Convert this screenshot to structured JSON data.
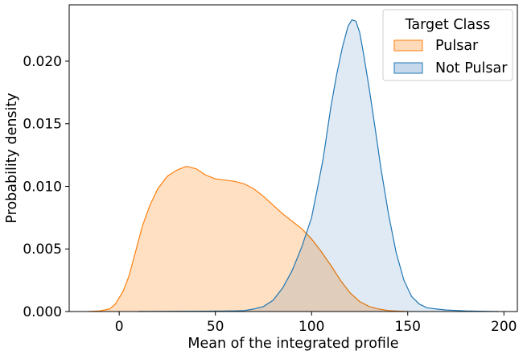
{
  "chart_data": {
    "type": "area",
    "title": "",
    "xlabel": "Mean of the integrated profile",
    "ylabel": "Probability density",
    "xlim": [
      -26,
      207
    ],
    "ylim": [
      0,
      0.0245
    ],
    "xticks": [
      0,
      50,
      100,
      150,
      200
    ],
    "xtick_labels": [
      "0",
      "50",
      "100",
      "150",
      "200"
    ],
    "yticks": [
      0,
      0.005,
      0.01,
      0.015,
      0.02
    ],
    "ytick_labels": [
      "0.000",
      "0.005",
      "0.010",
      "0.015",
      "0.020"
    ],
    "grid": false,
    "legend": {
      "title": "Target Class",
      "placement": "top-right"
    },
    "series": [
      {
        "name": "Pulsar",
        "color": "#ff7f0e",
        "fill": "#ffdab9",
        "x": [
          -16,
          -10,
          -5,
          -2,
          2,
          5,
          8,
          12,
          16,
          20,
          25,
          30,
          35,
          40,
          45,
          50,
          55,
          60,
          65,
          70,
          75,
          80,
          85,
          90,
          95,
          100,
          105,
          110,
          115,
          120,
          125,
          130,
          135,
          140,
          145,
          150
        ],
        "y": [
          0,
          5e-05,
          0.0002,
          0.0006,
          0.0016,
          0.0028,
          0.0045,
          0.0068,
          0.0085,
          0.0098,
          0.0108,
          0.0113,
          0.0116,
          0.0114,
          0.0109,
          0.0106,
          0.0105,
          0.0104,
          0.0102,
          0.0098,
          0.0092,
          0.0085,
          0.0078,
          0.0072,
          0.0066,
          0.0058,
          0.0048,
          0.0037,
          0.0025,
          0.0015,
          0.0008,
          0.0004,
          0.0002,
          8e-05,
          3e-05,
          0
        ]
      },
      {
        "name": "Not Pulsar",
        "color": "#1f77b4",
        "fill": "#c6d9ec",
        "x": [
          10,
          30,
          50,
          60,
          65,
          70,
          75,
          80,
          85,
          90,
          95,
          100,
          103,
          106,
          110,
          113,
          116,
          119,
          121,
          123,
          125,
          127,
          130,
          133,
          136,
          140,
          144,
          148,
          152,
          156,
          160,
          165,
          170,
          180,
          190,
          197
        ],
        "y": [
          0,
          2e-05,
          3e-05,
          5e-05,
          8e-05,
          0.0002,
          0.0004,
          0.0009,
          0.0019,
          0.0033,
          0.0052,
          0.0075,
          0.0098,
          0.0122,
          0.0163,
          0.0189,
          0.0211,
          0.0228,
          0.0233,
          0.0232,
          0.0223,
          0.0206,
          0.0178,
          0.0147,
          0.0115,
          0.0078,
          0.0047,
          0.0025,
          0.0012,
          0.0006,
          0.0003,
          0.0002,
          0.00012,
          5e-05,
          2e-05,
          0
        ]
      }
    ]
  }
}
